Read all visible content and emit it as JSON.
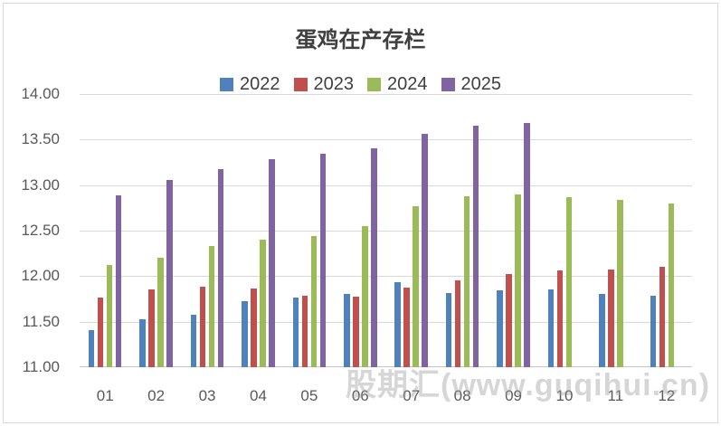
{
  "watermark": {
    "text": "股期汇(www.guqihui.cn)"
  },
  "chart_data": {
    "type": "bar",
    "title": "蛋鸡在产存栏",
    "categories": [
      "01",
      "02",
      "03",
      "04",
      "05",
      "06",
      "07",
      "08",
      "09",
      "10",
      "11",
      "12"
    ],
    "series": [
      {
        "name": "2022",
        "color": "#4F81BD",
        "values": [
          11.41,
          11.53,
          11.58,
          11.73,
          11.77,
          11.81,
          11.93,
          11.82,
          11.84,
          11.85,
          11.81,
          11.79
        ]
      },
      {
        "name": "2023",
        "color": "#C0504D",
        "values": [
          11.77,
          11.85,
          11.88,
          11.86,
          11.79,
          11.78,
          11.87,
          11.95,
          12.02,
          12.06,
          12.07,
          12.1
        ]
      },
      {
        "name": "2024",
        "color": "#9BBB59",
        "values": [
          12.12,
          12.2,
          12.33,
          12.4,
          12.44,
          12.55,
          12.77,
          12.88,
          12.9,
          12.87,
          12.84,
          12.8
        ]
      },
      {
        "name": "2025",
        "color": "#8064A2",
        "values": [
          12.89,
          13.06,
          13.18,
          13.29,
          13.34,
          13.4,
          13.56,
          13.65,
          13.68,
          null,
          null,
          null
        ]
      }
    ],
    "ylim": [
      11.0,
      14.0
    ],
    "ytick_step": 0.5,
    "ytick_labels": [
      "11.00",
      "11.50",
      "12.00",
      "12.50",
      "13.00",
      "13.50",
      "14.00"
    ],
    "grid": true,
    "legend_position": "top",
    "axis_text_color": "#595959",
    "gridline_color": "#D9D9D9",
    "xlabel": "",
    "ylabel": ""
  }
}
